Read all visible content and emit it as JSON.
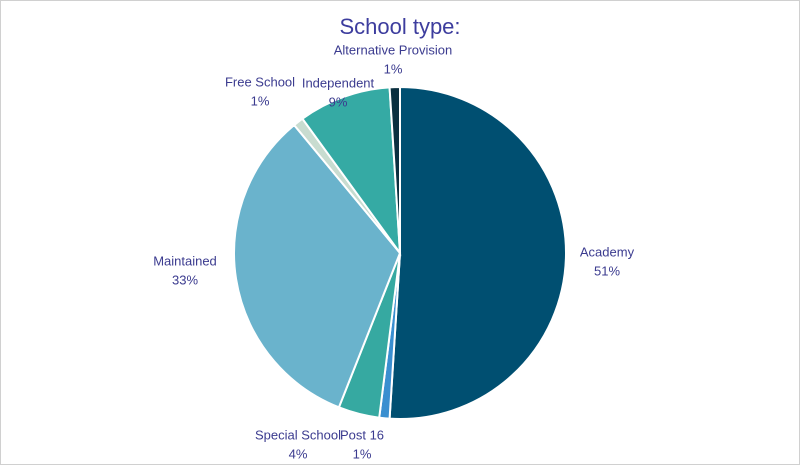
{
  "chart_data": {
    "type": "pie",
    "title": "School type:",
    "categories": [
      "Academy",
      "Post 16",
      "Special School",
      "Maintained",
      "Free School",
      "Independent",
      "Alternative Provision"
    ],
    "values": [
      51,
      1,
      4,
      33,
      1,
      9,
      1
    ],
    "value_labels": [
      "51%",
      "1%",
      "4%",
      "33%",
      "1%",
      "9%",
      "1%"
    ],
    "colors": [
      "#004f71",
      "#3a8fd0",
      "#36a9a1",
      "#6ab3cc",
      "#c8dcd0",
      "#35aaa4",
      "#0a2f3f"
    ]
  }
}
